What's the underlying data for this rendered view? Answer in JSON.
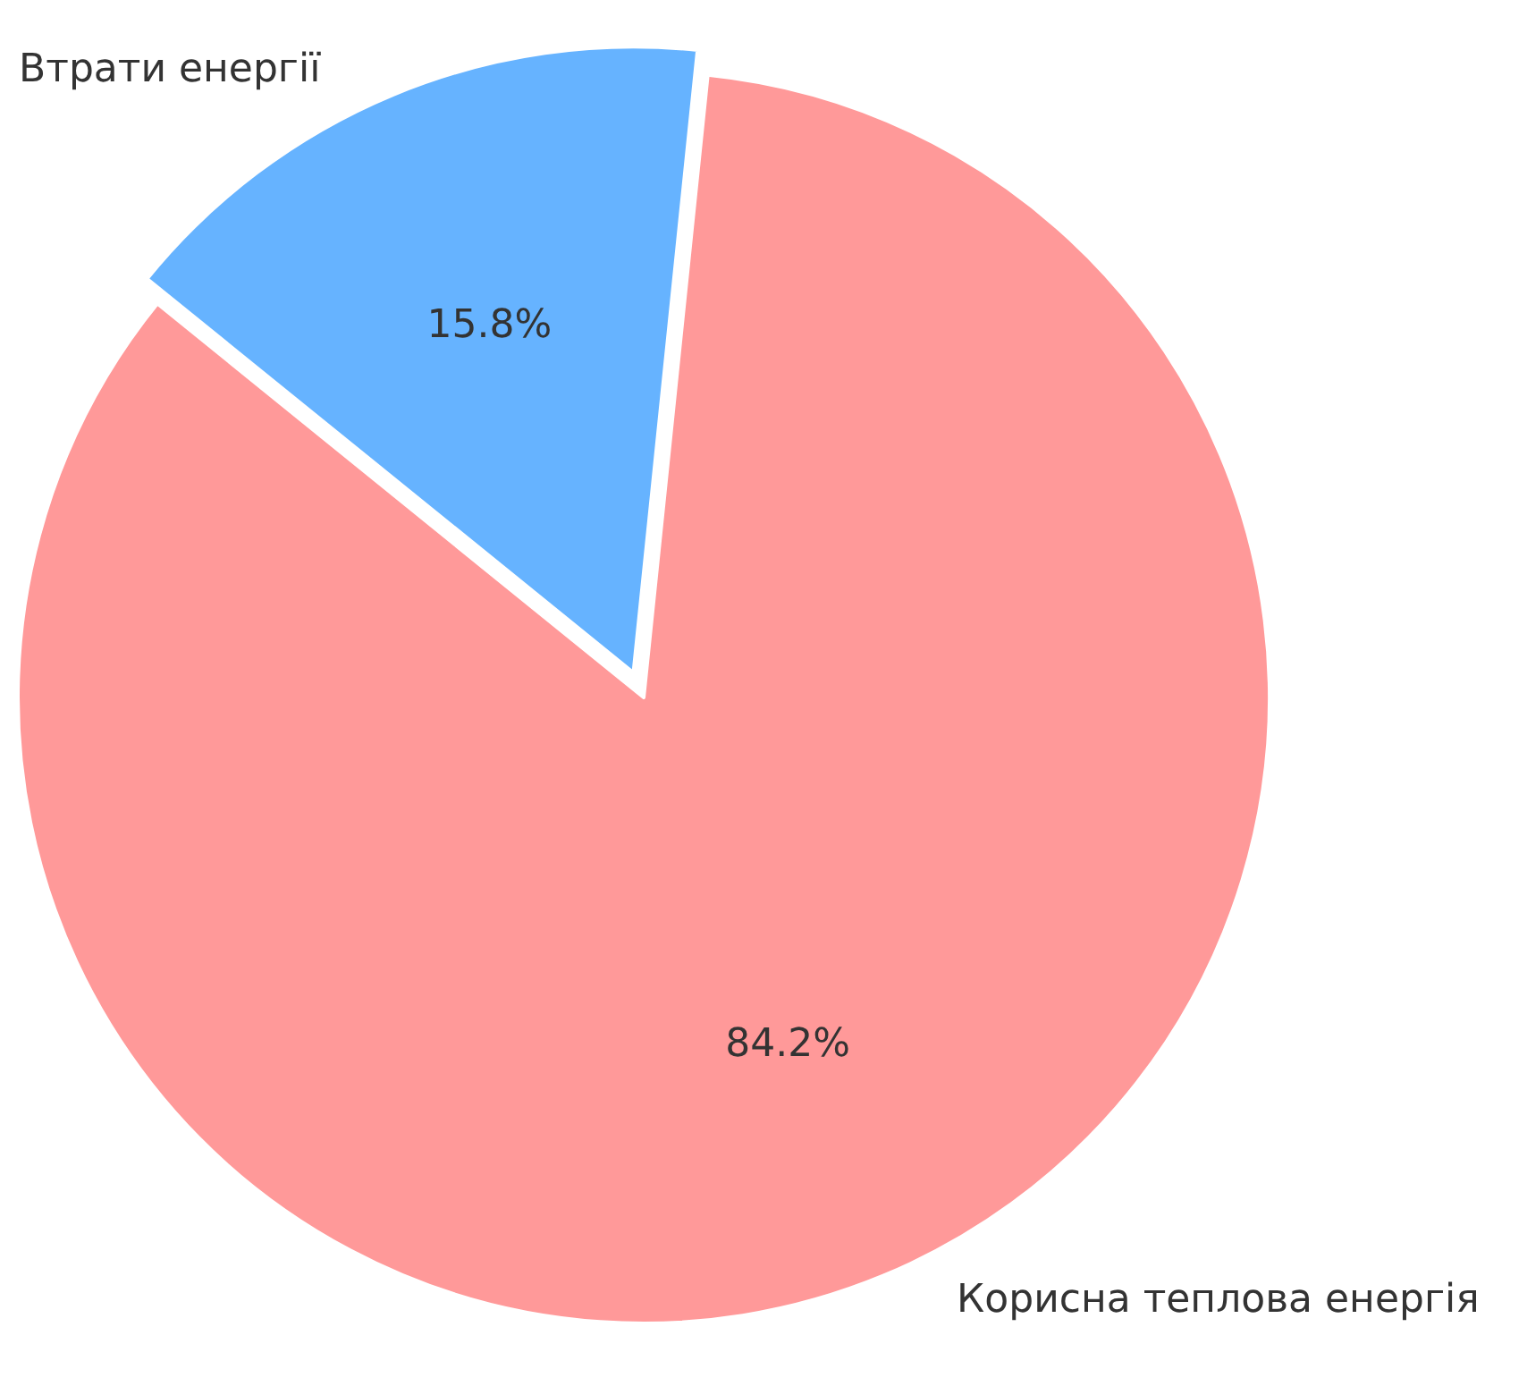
{
  "chart_data": {
    "type": "pie",
    "categories": [
      "Втрати енергії",
      "Корисна теплова енергія"
    ],
    "values": [
      15.8,
      84.2
    ],
    "colors": [
      "#66b3ff",
      "#ff9999"
    ],
    "value_labels": [
      "15.8%",
      "84.2%"
    ],
    "legend": false
  }
}
